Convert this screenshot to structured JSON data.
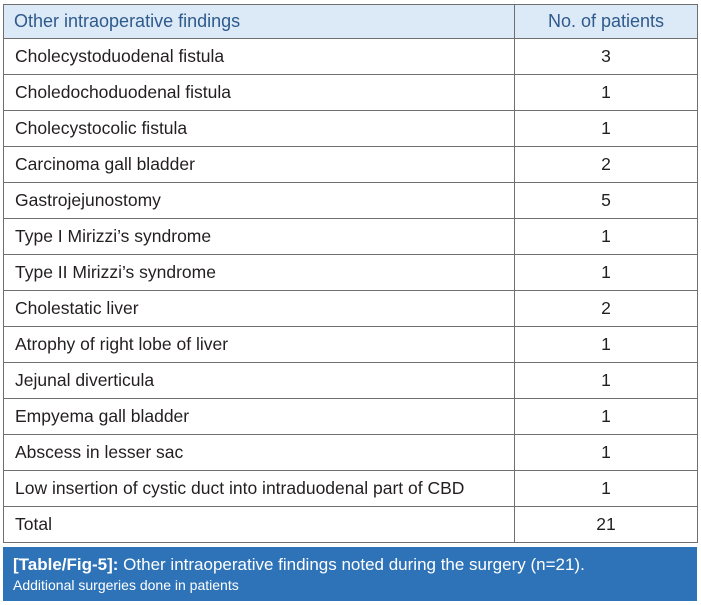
{
  "table": {
    "headers": [
      "Other intraoperative findings",
      "No. of patients"
    ],
    "rows": [
      {
        "finding": "Cholecystoduodenal fistula",
        "count": "3"
      },
      {
        "finding": "Choledochoduodenal fistula",
        "count": "1"
      },
      {
        "finding": "Cholecystocolic fistula",
        "count": "1"
      },
      {
        "finding": "Carcinoma gall bladder",
        "count": "2"
      },
      {
        "finding": "Gastrojejunostomy",
        "count": "5"
      },
      {
        "finding": "Type I Mirizzi’s syndrome",
        "count": "1"
      },
      {
        "finding": "Type II Mirizzi’s syndrome",
        "count": "1"
      },
      {
        "finding": "Cholestatic liver",
        "count": "2"
      },
      {
        "finding": "Atrophy of right lobe of liver",
        "count": "1"
      },
      {
        "finding": "Jejunal diverticula",
        "count": "1"
      },
      {
        "finding": "Empyema gall bladder",
        "count": "1"
      },
      {
        "finding": "Abscess in lesser sac",
        "count": "1"
      },
      {
        "finding": "Low insertion of cystic duct into intraduodenal part of CBD",
        "count": "1"
      },
      {
        "finding": "Total",
        "count": "21"
      }
    ]
  },
  "caption": {
    "label": "[Table/Fig-5]:",
    "text": " Other intraoperative findings noted during the surgery (n=21).",
    "subtext": "Additional surgeries done in patients"
  }
}
